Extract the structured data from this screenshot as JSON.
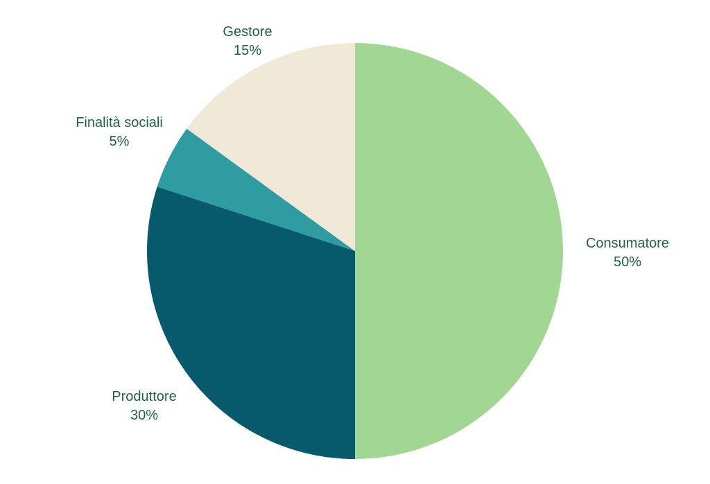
{
  "chart_data": {
    "type": "pie",
    "title": "",
    "slices": [
      {
        "label": "Consumatore",
        "value": 50,
        "value_label": "50%",
        "color": "#a2d693"
      },
      {
        "label": "Produttore",
        "value": 30,
        "value_label": "30%",
        "color": "#065a6c"
      },
      {
        "label": "Finalità sociali",
        "value": 5,
        "value_label": "5%",
        "color": "#2e9ca1"
      },
      {
        "label": "Gestore",
        "value": 15,
        "value_label": "15%",
        "color": "#f0e9d8"
      }
    ],
    "start_angle": "12 o'clock",
    "direction": "clockwise",
    "label_color": "#1f6440",
    "legend": "none"
  }
}
